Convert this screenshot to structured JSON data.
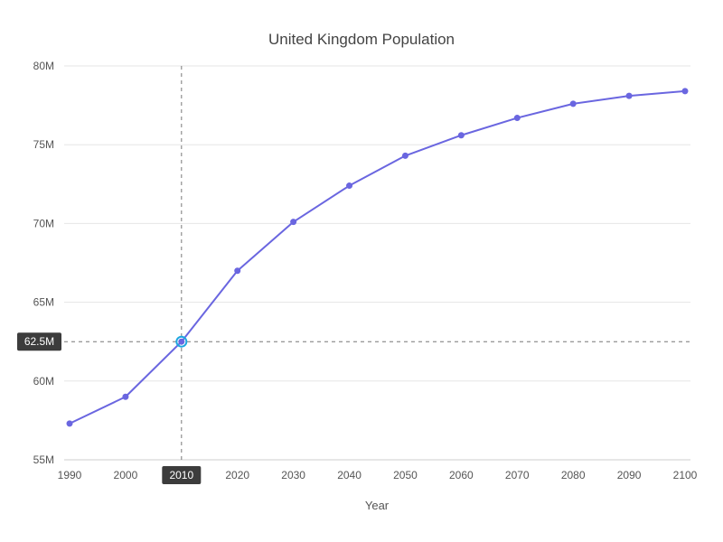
{
  "chart_data": {
    "type": "line",
    "title": "United Kingdom Population",
    "xlabel": "Year",
    "ylabel": "",
    "ylim": [
      55,
      80
    ],
    "y_ticks": [
      55,
      60,
      65,
      70,
      75,
      80
    ],
    "y_tick_labels": [
      "55M",
      "60M",
      "65M",
      "70M",
      "75M",
      "80M"
    ],
    "x": [
      1990,
      2000,
      2010,
      2020,
      2030,
      2040,
      2050,
      2060,
      2070,
      2080,
      2090,
      2100
    ],
    "x_tick_labels": [
      "1990",
      "2000",
      "2010",
      "2020",
      "2030",
      "2040",
      "2050",
      "2060",
      "2070",
      "2080",
      "2090",
      "2100"
    ],
    "series": [
      {
        "values": [
          57.3,
          59.0,
          62.5,
          67.0,
          70.1,
          72.4,
          74.3,
          75.6,
          76.7,
          77.6,
          78.1,
          78.4
        ]
      }
    ],
    "grid": true,
    "color": "#6a66e0",
    "highlight": {
      "x": 2010,
      "y": 62.5,
      "x_label": "2010",
      "y_label": "62.5M",
      "color": "#1ea7e0"
    }
  }
}
